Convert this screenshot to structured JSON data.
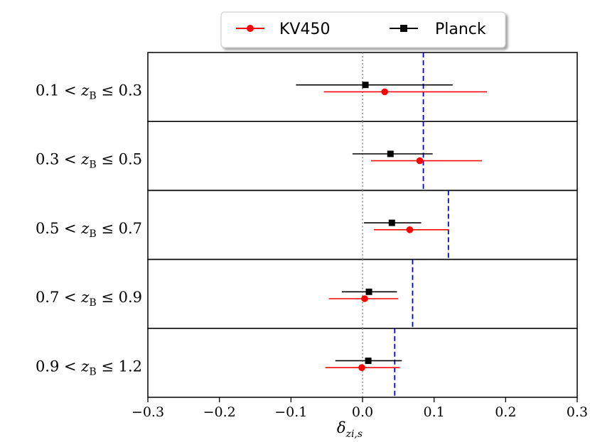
{
  "chart_data": {
    "type": "forest",
    "xlabel": "δ",
    "xlabel_sub": "zi,s",
    "xlim": [
      -0.3,
      0.3
    ],
    "xticks": [
      -0.3,
      -0.2,
      -0.1,
      0.0,
      0.1,
      0.2,
      0.3
    ],
    "xtick_labels": [
      "−0.3",
      "−0.2",
      "−0.1",
      "0.0",
      "0.1",
      "0.2",
      "0.3"
    ],
    "reference_line": 0.0,
    "legend_position": "top-center",
    "rows": [
      {
        "label_lo": "0.1",
        "label_hi": "0.3",
        "var": "z",
        "sub": "B",
        "kids_reference": 0.085,
        "kv450": {
          "value": 0.031,
          "low": -0.054,
          "high": 0.174
        },
        "planck": {
          "value": 0.004,
          "low": -0.093,
          "high": 0.126
        }
      },
      {
        "label_lo": "0.3",
        "label_hi": "0.5",
        "var": "z",
        "sub": "B",
        "kids_reference": 0.085,
        "kv450": {
          "value": 0.08,
          "low": 0.012,
          "high": 0.167
        },
        "planck": {
          "value": 0.039,
          "low": -0.014,
          "high": 0.098
        }
      },
      {
        "label_lo": "0.5",
        "label_hi": "0.7",
        "var": "z",
        "sub": "B",
        "kids_reference": 0.12,
        "kv450": {
          "value": 0.066,
          "low": 0.016,
          "high": 0.121
        },
        "planck": {
          "value": 0.041,
          "low": 0.002,
          "high": 0.082
        }
      },
      {
        "label_lo": "0.7",
        "label_hi": "0.9",
        "var": "z",
        "sub": "B",
        "kids_reference": 0.07,
        "kv450": {
          "value": 0.003,
          "low": -0.047,
          "high": 0.05
        },
        "planck": {
          "value": 0.009,
          "low": -0.029,
          "high": 0.048
        }
      },
      {
        "label_lo": "0.9",
        "label_hi": "1.2",
        "var": "z",
        "sub": "B",
        "kids_reference": 0.045,
        "kv450": {
          "value": -0.001,
          "low": -0.052,
          "high": 0.052
        },
        "planck": {
          "value": 0.008,
          "low": -0.038,
          "high": 0.055
        }
      }
    ],
    "series": [
      {
        "name": "KV450",
        "color": "#ff0000",
        "marker": "circle"
      },
      {
        "name": "Planck",
        "color": "#000000",
        "marker": "square"
      }
    ],
    "reference_color": "#0000cc"
  }
}
